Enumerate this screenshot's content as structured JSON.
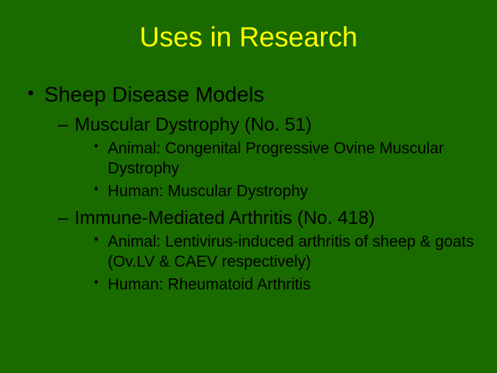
{
  "background_color": "#196b00",
  "title_color": "#ffff00",
  "body_color": "#000000",
  "font_family": "Arial",
  "title": {
    "text": "Uses in Research",
    "fontsize": 40
  },
  "level1": {
    "fontsize": 31,
    "items": [
      {
        "text": "Sheep Disease Models"
      }
    ]
  },
  "level2": {
    "fontsize": 27,
    "items": [
      {
        "text": "Muscular Dystrophy (No. 51)"
      },
      {
        "text": "Immune-Mediated Arthritis (No. 418)"
      }
    ]
  },
  "level3": {
    "fontsize": 23,
    "group0": [
      {
        "text": "Animal: Congenital Progressive Ovine Muscular Dystrophy"
      },
      {
        "text": "Human: Muscular Dystrophy"
      }
    ],
    "group1": [
      {
        "text": "Animal: Lentivirus-induced arthritis of sheep & goats (Ov.LV & CAEV respectively)"
      },
      {
        "text": "Human: Rheumatoid Arthritis"
      }
    ]
  }
}
